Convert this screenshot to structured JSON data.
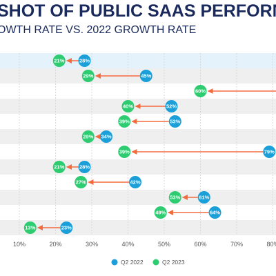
{
  "chart_data": {
    "type": "dumbbell",
    "title": "SHOT OF PUBLIC SAAS PERFORM",
    "subtitle": "OWTH RATE VS. 2022 GROWTH RATE",
    "xlabel": "",
    "ylabel": "",
    "xlim": [
      10,
      90
    ],
    "x_ticks": [
      10,
      20,
      30,
      40,
      50,
      60,
      70,
      80
    ],
    "x_tick_labels": [
      "10%",
      "20%",
      "30%",
      "40%",
      "50%",
      "60%",
      "70%",
      "80%"
    ],
    "legend_position": "bottom-center",
    "series": [
      {
        "name": "Q2 2022",
        "color": "#1a9fd9",
        "values": [
          28,
          45,
          null,
          52,
          53,
          34,
          79,
          28,
          42,
          61,
          64,
          23
        ],
        "labels": [
          "28%",
          "45%",
          "",
          "52%",
          "53%",
          "34%",
          "79%",
          "28%",
          "42%",
          "61%",
          "64%",
          "23%"
        ]
      },
      {
        "name": "Q2 2023",
        "color": "#2ecc71",
        "values": [
          21,
          29,
          60,
          40,
          39,
          29,
          39,
          21,
          27,
          53,
          49,
          13
        ],
        "labels": [
          "21%",
          "29%",
          "60%",
          "40%",
          "39%",
          "29%",
          "39%",
          "21%",
          "27%",
          "53%",
          "49%",
          "13%"
        ]
      }
    ],
    "arrow_color": "#f26a3d",
    "highlight_row": 0,
    "colors": {
      "title": "#1b2a5c",
      "subtitle": "#1b2a5c",
      "band": "#efefef",
      "highlight": "#e3f2fb",
      "grid": "#d9d9d9",
      "tick": "#555555",
      "label_text": "#ffffff"
    }
  }
}
